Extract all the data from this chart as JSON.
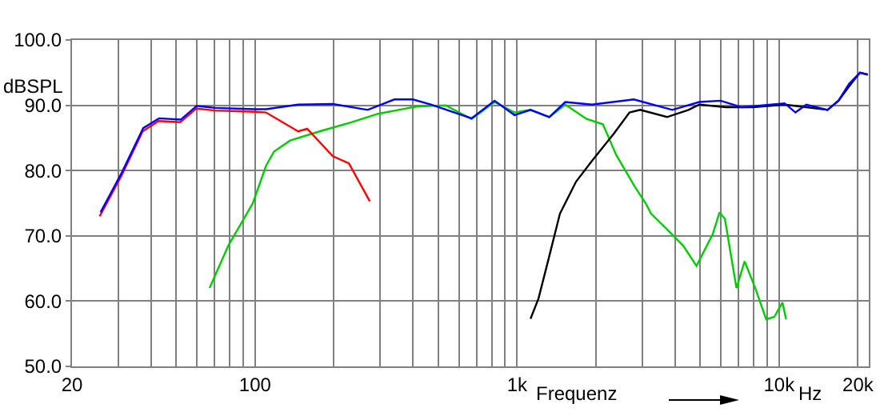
{
  "chart_data": {
    "type": "line",
    "xlabel": "Frequenz",
    "ylabel": "dBSPL",
    "annotations": [
      "Hz"
    ],
    "log": "x",
    "grid": true,
    "xlim": [
      20,
      22000
    ],
    "ylim": [
      50,
      100
    ],
    "xticks": [
      20,
      {
        "value": 30,
        "label": null
      },
      {
        "value": 40,
        "label": null
      },
      {
        "value": 50,
        "label": null
      },
      {
        "value": 60,
        "label": null
      },
      {
        "value": 70,
        "label": null
      },
      {
        "value": 80,
        "label": null
      },
      {
        "value": 90,
        "label": null
      },
      100,
      {
        "value": 200,
        "label": null
      },
      {
        "value": 300,
        "label": null
      },
      {
        "value": 400,
        "label": null
      },
      {
        "value": 500,
        "label": null
      },
      {
        "value": 600,
        "label": null
      },
      {
        "value": 700,
        "label": null
      },
      {
        "value": 800,
        "label": null
      },
      {
        "value": 900,
        "label": null
      },
      {
        "value": 1000,
        "label": "1k"
      },
      {
        "value": 2000,
        "label": null
      },
      {
        "value": 3000,
        "label": null
      },
      {
        "value": 4000,
        "label": null
      },
      {
        "value": 5000,
        "label": null
      },
      {
        "value": 6000,
        "label": null
      },
      {
        "value": 7000,
        "label": null
      },
      {
        "value": 8000,
        "label": null
      },
      {
        "value": 9000,
        "label": null
      },
      {
        "value": 10000,
        "label": "10k"
      },
      {
        "value": 20000,
        "label": "20k"
      }
    ],
    "yticks": [
      {
        "value": 50,
        "label": "50.0"
      },
      {
        "value": 60,
        "label": "60.0"
      },
      {
        "value": 70,
        "label": "70.0"
      },
      {
        "value": 80,
        "label": "80.0"
      },
      {
        "value": 90,
        "label": "90.0"
      },
      {
        "value": 100,
        "label": "100.0"
      }
    ],
    "series": [
      {
        "color": "#00cc00",
        "x": [
          67,
          79,
          98,
          110,
          118,
          136,
          176,
          233,
          295,
          411,
          534,
          670,
          820,
          977,
          1125,
          1327,
          1527,
          1843,
          2125,
          2389,
          2817,
          3095,
          3244,
          3734,
          4303,
          4839,
          5575,
          5925,
          6210,
          6875,
          7385,
          8110,
          8930,
          9590,
          10300,
          10640
        ],
        "values": [
          62.0,
          68.5,
          75.0,
          80.7,
          82.9,
          84.6,
          86.0,
          87.4,
          88.7,
          89.8,
          90.0,
          87.9,
          90.5,
          88.9,
          89.3,
          88.2,
          90.1,
          87.9,
          87.1,
          82.4,
          77.5,
          75.0,
          73.4,
          71.0,
          68.5,
          65.4,
          70.2,
          73.6,
          72.6,
          62.0,
          66.1,
          62.0,
          57.2,
          57.6,
          59.8,
          57.2
        ]
      },
      {
        "color": "#ff0000",
        "x": [
          25.5,
          30.8,
          37.2,
          42.8,
          51.8,
          59.6,
          70.3,
          100,
          110,
          146,
          158,
          198,
          228,
          274
        ],
        "values": [
          73.0,
          79.1,
          86.0,
          87.6,
          87.4,
          89.5,
          89.2,
          89.0,
          88.9,
          86.0,
          86.4,
          82.2,
          81.1,
          75.3
        ]
      },
      {
        "color": "#000000",
        "x": [
          1125,
          1207,
          1327,
          1457,
          1679,
          1932,
          2335,
          2686,
          2951,
          3734,
          4512,
          4956,
          6275,
          7940,
          10500,
          12700,
          15300,
          16850,
          18500,
          20350,
          21800
        ],
        "values": [
          57.3,
          60.4,
          66.9,
          73.4,
          78.3,
          81.5,
          85.6,
          88.9,
          89.3,
          88.2,
          89.3,
          90.1,
          89.7,
          89.7,
          90.1,
          89.7,
          89.3,
          90.7,
          92.9,
          95.0,
          94.7
        ]
      },
      {
        "color": "#0000ff",
        "x": [
          25.7,
          31,
          37.4,
          43,
          52,
          59.8,
          70.5,
          100,
          110,
          146,
          198,
          269,
          340,
          400,
          471,
          670,
          820,
          977,
          1125,
          1327,
          1527,
          1932,
          2789,
          3913,
          4956,
          5980,
          7215,
          10500,
          11550,
          12700,
          15300,
          16850,
          18500,
          20350,
          21800
        ],
        "values": [
          73.6,
          79.7,
          86.5,
          88.0,
          87.8,
          89.9,
          89.6,
          89.4,
          89.4,
          90.1,
          90.2,
          89.3,
          90.9,
          90.9,
          90.1,
          88.0,
          90.7,
          88.5,
          89.3,
          88.2,
          90.5,
          90.1,
          90.9,
          89.3,
          90.5,
          90.7,
          89.7,
          90.3,
          88.9,
          90.1,
          89.3,
          90.7,
          93.3,
          95.0,
          94.7
        ]
      }
    ]
  }
}
